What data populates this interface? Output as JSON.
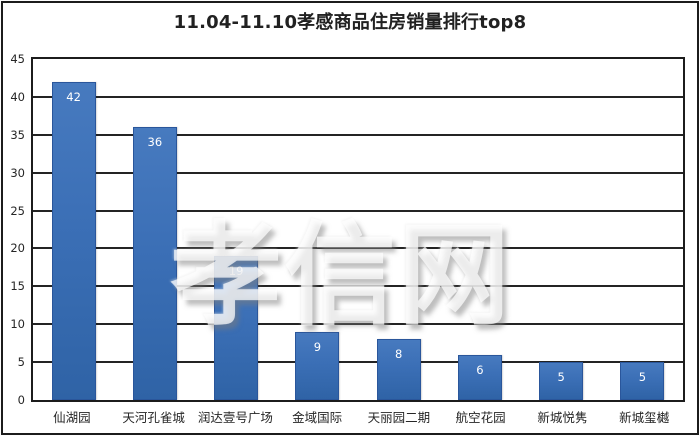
{
  "page": {
    "title": "11.04-11.10孝感商品住房销量排行top8"
  },
  "watermark": {
    "text": "孝信网"
  },
  "chart_data": {
    "type": "bar",
    "title": "11.04-11.10孝感商品住房销量排行top8",
    "categories": [
      "仙湖园",
      "天河孔雀城",
      "润达壹号广场",
      "金域国际",
      "天丽园二期",
      "航空花园",
      "新城悦隽",
      "新城玺樾"
    ],
    "values": [
      42,
      36,
      19,
      9,
      8,
      6,
      5,
      5
    ],
    "xlabel": "",
    "ylabel": "",
    "ylim": [
      0,
      45
    ],
    "yticks": [
      0,
      5,
      10,
      15,
      20,
      25,
      30,
      35,
      40,
      45
    ],
    "grid": true,
    "legend": "none",
    "data_labels": "inside-end",
    "colors": {
      "bar_top": "#477abf",
      "bar_bottom": "#2f63a6",
      "bar_border": "#2a569b",
      "bar_label": "#ffffff",
      "gridline": "#242424",
      "axis_text": "#262626",
      "title_text": "#212121",
      "plot_border": "#1c1c1c",
      "background": "#ffffff"
    }
  }
}
